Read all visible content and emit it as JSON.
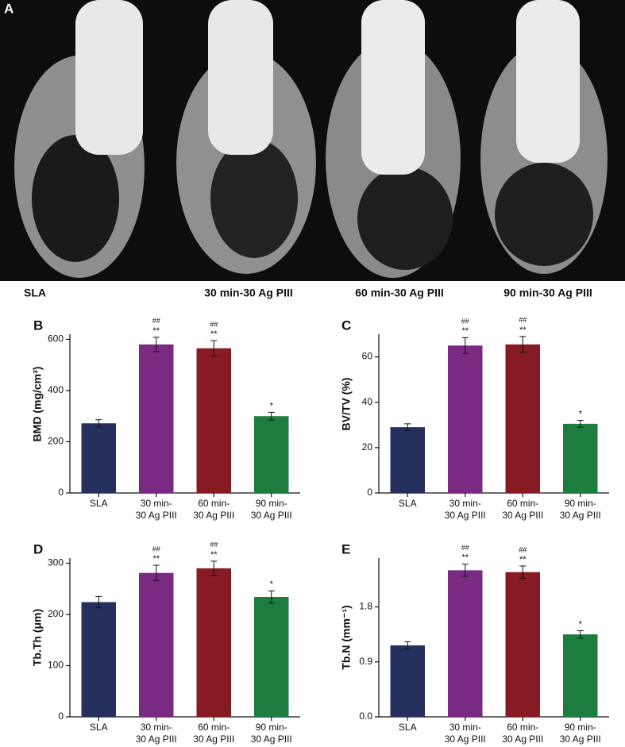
{
  "panel_a": {
    "label": "A",
    "images": [
      "SLA",
      "30 min-30 Ag PIII",
      "60 min-30 Ag PIII",
      "90 min-30 Ag PIII"
    ]
  },
  "chart_data": [
    {
      "type": "bar",
      "panel": "B",
      "ylabel": "BMD (mg/cm³)",
      "categories": [
        "SLA",
        "30 min-30 Ag PIII",
        "60 min-30 Ag PIII",
        "90 min-30 Ag PIII"
      ],
      "values": [
        272,
        580,
        565,
        300
      ],
      "errors": [
        14,
        28,
        30,
        15
      ],
      "colors": [
        "#26305e",
        "#7b2a83",
        "#861b24",
        "#1c7d3f"
      ],
      "annotations_upper": [
        null,
        "##",
        "##",
        null
      ],
      "annotations_lower": [
        null,
        "**",
        "**",
        "*"
      ],
      "ylim": [
        0,
        620
      ],
      "yticks": [
        0,
        200,
        400,
        600
      ]
    },
    {
      "type": "bar",
      "panel": "C",
      "ylabel": "BV/TV (%)",
      "categories": [
        "SLA",
        "30 min-30 Ag PIII",
        "60 min-30 Ag PIII",
        "90 min-30 Ag PIII"
      ],
      "values": [
        29,
        65,
        65.5,
        30.5
      ],
      "errors": [
        1.5,
        3.5,
        3.5,
        1.5
      ],
      "colors": [
        "#26305e",
        "#7b2a83",
        "#861b24",
        "#1c7d3f"
      ],
      "annotations_upper": [
        null,
        "##",
        "##",
        null
      ],
      "annotations_lower": [
        null,
        "**",
        "**",
        "*"
      ],
      "ylim": [
        0,
        70
      ],
      "yticks": [
        0,
        20,
        40,
        60
      ]
    },
    {
      "type": "bar",
      "panel": "D",
      "ylabel": "Tb.Th (μm)",
      "categories": [
        "SLA",
        "30 min-30 Ag PIII",
        "60 min-30 Ag PIII",
        "90 min-30 Ag PIII"
      ],
      "values": [
        224,
        281,
        290,
        234
      ],
      "errors": [
        11,
        15,
        14,
        12
      ],
      "colors": [
        "#26305e",
        "#7b2a83",
        "#861b24",
        "#1c7d3f"
      ],
      "annotations_upper": [
        null,
        "##",
        "##",
        null
      ],
      "annotations_lower": [
        null,
        "**",
        "**",
        "*"
      ],
      "ylim": [
        0,
        310
      ],
      "yticks": [
        0,
        100,
        200,
        300
      ]
    },
    {
      "type": "bar",
      "panel": "E",
      "ylabel": "Tb.N (mm⁻¹)",
      "categories": [
        "SLA",
        "30 min-30 Ag PIII",
        "60 min-30 Ag PIII",
        "90 min-30 Ag PIII"
      ],
      "values": [
        1.17,
        2.4,
        2.37,
        1.35
      ],
      "errors": [
        0.06,
        0.1,
        0.1,
        0.06
      ],
      "colors": [
        "#26305e",
        "#7b2a83",
        "#861b24",
        "#1c7d3f"
      ],
      "annotations_upper": [
        null,
        "##",
        "##",
        null
      ],
      "annotations_lower": [
        null,
        "**",
        "**",
        "*"
      ],
      "ylim": [
        0,
        2.6
      ],
      "yticks": [
        {
          "value": 0,
          "label": "0.0"
        },
        {
          "value": 0.9,
          "label": "0.9"
        },
        {
          "value": 1.8,
          "label": "1.8"
        }
      ]
    }
  ]
}
